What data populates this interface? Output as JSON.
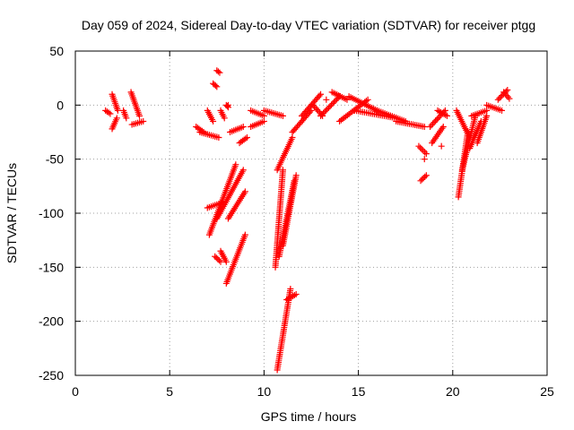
{
  "chart_data": {
    "type": "scatter",
    "title": "Day 059 of 2024, Sidereal Day-to-day VTEC variation (SDTVAR) for receiver ptgg",
    "xlabel": "GPS time / hours",
    "ylabel": "SDTVAR / TECUs",
    "xlim": [
      0,
      25
    ],
    "ylim": [
      -250,
      50
    ],
    "xticks": [
      0,
      5,
      10,
      15,
      20,
      25
    ],
    "yticks": [
      -250,
      -200,
      -150,
      -100,
      -50,
      0,
      50
    ],
    "grid": true,
    "marker": "plus",
    "color": "#ff0000",
    "series": [
      {
        "name": "SDTVAR",
        "segments": [
          {
            "x0": 1.6,
            "y0": -5,
            "x1": 1.85,
            "y1": -8
          },
          {
            "x0": 1.95,
            "y0": 10,
            "x1": 2.25,
            "y1": -5
          },
          {
            "x0": 1.95,
            "y0": -22,
            "x1": 2.2,
            "y1": -12
          },
          {
            "x0": 2.55,
            "y0": -5,
            "x1": 2.7,
            "y1": -12
          },
          {
            "x0": 2.95,
            "y0": 12,
            "x1": 3.4,
            "y1": -10
          },
          {
            "x0": 3.0,
            "y0": -18,
            "x1": 3.6,
            "y1": -15
          },
          {
            "x0": 6.4,
            "y0": -20,
            "x1": 6.8,
            "y1": -25
          },
          {
            "x0": 6.6,
            "y0": -25,
            "x1": 7.6,
            "y1": -30
          },
          {
            "x0": 7.0,
            "y0": -5,
            "x1": 7.3,
            "y1": -15
          },
          {
            "x0": 7.3,
            "y0": 20,
            "x1": 7.5,
            "y1": 17
          },
          {
            "x0": 7.5,
            "y0": 32,
            "x1": 7.65,
            "y1": 30
          },
          {
            "x0": 7.7,
            "y0": -5,
            "x1": 7.9,
            "y1": -12
          },
          {
            "x0": 8.0,
            "y0": 0,
            "x1": 8.1,
            "y1": -2
          },
          {
            "x0": 7.0,
            "y0": -95,
            "x1": 7.8,
            "y1": -90
          },
          {
            "x0": 7.1,
            "y0": -120,
            "x1": 8.5,
            "y1": -55
          },
          {
            "x0": 7.4,
            "y0": -140,
            "x1": 7.7,
            "y1": -145
          },
          {
            "x0": 7.7,
            "y0": -135,
            "x1": 8.0,
            "y1": -145
          },
          {
            "x0": 7.5,
            "y0": -105,
            "x1": 8.9,
            "y1": -60
          },
          {
            "x0": 8.1,
            "y0": -105,
            "x1": 9.0,
            "y1": -80
          },
          {
            "x0": 8.0,
            "y0": -165,
            "x1": 9.0,
            "y1": -120
          },
          {
            "x0": 8.2,
            "y0": -25,
            "x1": 8.9,
            "y1": -20
          },
          {
            "x0": 8.7,
            "y0": -35,
            "x1": 9.1,
            "y1": -30
          },
          {
            "x0": 9.3,
            "y0": -5,
            "x1": 10.0,
            "y1": -10
          },
          {
            "x0": 9.3,
            "y0": -20,
            "x1": 10.0,
            "y1": -15
          },
          {
            "x0": 10.0,
            "y0": -5,
            "x1": 11.0,
            "y1": -10
          },
          {
            "x0": 10.6,
            "y0": -150,
            "x1": 11.0,
            "y1": -60
          },
          {
            "x0": 10.7,
            "y0": -60,
            "x1": 11.5,
            "y1": -30
          },
          {
            "x0": 10.8,
            "y0": -140,
            "x1": 11.6,
            "y1": -70
          },
          {
            "x0": 11.0,
            "y0": -130,
            "x1": 11.7,
            "y1": -65
          },
          {
            "x0": 10.7,
            "y0": -245,
            "x1": 11.4,
            "y1": -170
          },
          {
            "x0": 11.2,
            "y0": -180,
            "x1": 11.7,
            "y1": -175
          },
          {
            "x0": 11.5,
            "y0": -25,
            "x1": 12.5,
            "y1": -5
          },
          {
            "x0": 12.0,
            "y0": -10,
            "x1": 13.0,
            "y1": 10
          },
          {
            "x0": 12.6,
            "y0": 0,
            "x1": 13.1,
            "y1": -10
          },
          {
            "x0": 13.0,
            "y0": -10,
            "x1": 14.0,
            "y1": 8
          },
          {
            "x0": 13.6,
            "y0": 12,
            "x1": 14.4,
            "y1": 5
          },
          {
            "x0": 14.0,
            "y0": -15,
            "x1": 15.5,
            "y1": 5
          },
          {
            "x0": 14.5,
            "y0": 8,
            "x1": 16.0,
            "y1": -5
          },
          {
            "x0": 14.8,
            "y0": -5,
            "x1": 17.0,
            "y1": -12
          },
          {
            "x0": 16.0,
            "y0": -5,
            "x1": 17.5,
            "y1": -15
          },
          {
            "x0": 17.0,
            "y0": -15,
            "x1": 18.5,
            "y1": -20
          },
          {
            "x0": 18.2,
            "y0": -38,
            "x1": 18.6,
            "y1": -45
          },
          {
            "x0": 18.3,
            "y0": -70,
            "x1": 18.6,
            "y1": -65
          },
          {
            "x0": 18.8,
            "y0": -20,
            "x1": 19.6,
            "y1": -5
          },
          {
            "x0": 18.9,
            "y0": -35,
            "x1": 19.5,
            "y1": -20
          },
          {
            "x0": 19.2,
            "y0": -5,
            "x1": 19.7,
            "y1": -10
          },
          {
            "x0": 20.2,
            "y0": -5,
            "x1": 20.9,
            "y1": -30
          },
          {
            "x0": 20.3,
            "y0": -85,
            "x1": 20.8,
            "y1": -25
          },
          {
            "x0": 20.5,
            "y0": -60,
            "x1": 21.2,
            "y1": -10
          },
          {
            "x0": 20.9,
            "y0": -40,
            "x1": 21.5,
            "y1": -15
          },
          {
            "x0": 21.3,
            "y0": -35,
            "x1": 21.8,
            "y1": -10
          },
          {
            "x0": 21.0,
            "y0": -10,
            "x1": 21.8,
            "y1": -5
          },
          {
            "x0": 21.8,
            "y0": 0,
            "x1": 22.6,
            "y1": -5
          },
          {
            "x0": 22.4,
            "y0": 5,
            "x1": 22.9,
            "y1": 14
          },
          {
            "x0": 22.7,
            "y0": 12,
            "x1": 23.0,
            "y1": 6
          }
        ],
        "points": [
          [
            18.5,
            -50
          ],
          [
            19.4,
            -38
          ],
          [
            13.3,
            5
          ],
          [
            8.1,
            0
          ]
        ]
      }
    ]
  }
}
